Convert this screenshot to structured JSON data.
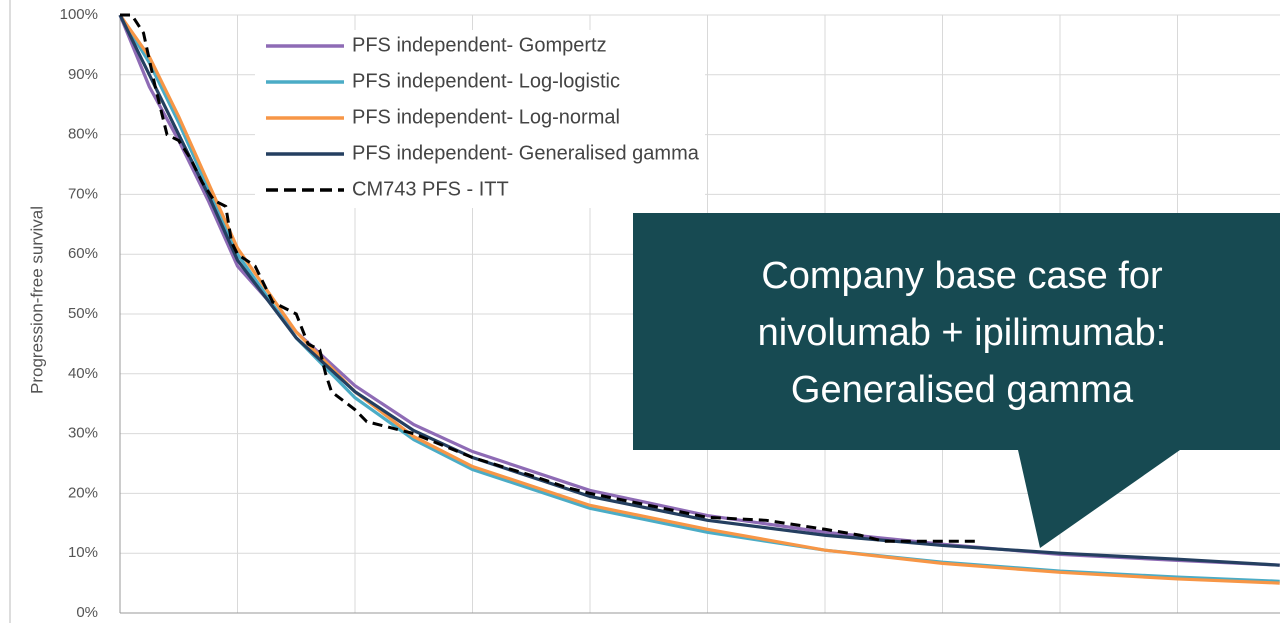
{
  "chart_data": {
    "type": "line",
    "y_label": "Progression-free survival",
    "ylim": [
      0,
      100
    ],
    "yticks": [
      {
        "value": 0,
        "label": "0%"
      },
      {
        "value": 10,
        "label": "10%"
      },
      {
        "value": 20,
        "label": "20%"
      },
      {
        "value": 30,
        "label": "30%"
      },
      {
        "value": 40,
        "label": "40%"
      },
      {
        "value": 50,
        "label": "50%"
      },
      {
        "value": 60,
        "label": "60%"
      },
      {
        "value": 70,
        "label": "70%"
      },
      {
        "value": 80,
        "label": "80%"
      },
      {
        "value": 90,
        "label": "90%"
      },
      {
        "value": 100,
        "label": "100%"
      }
    ],
    "xlim": [
      0,
      9.87
    ],
    "grid": true,
    "legend": "upper left",
    "series": [
      {
        "name": "PFS independent- Gompertz",
        "color": "#8e6bb5",
        "style": "solid",
        "x": [
          0,
          0.25,
          0.5,
          0.75,
          1,
          1.5,
          2,
          2.5,
          3,
          4,
          5,
          6,
          7,
          8,
          9,
          9.87
        ],
        "values": [
          100,
          88,
          79,
          69,
          58,
          47,
          38,
          31.5,
          27,
          20.5,
          16.3,
          13.5,
          11.5,
          9.8,
          8.8,
          8
        ]
      },
      {
        "name": "PFS independent- Log-logistic",
        "color": "#4bacc6",
        "style": "solid",
        "x": [
          0,
          0.25,
          0.5,
          0.75,
          1,
          1.5,
          2,
          2.5,
          3,
          4,
          5,
          6,
          7,
          8,
          9,
          9.87
        ],
        "values": [
          100,
          92,
          82,
          71,
          60,
          46,
          36,
          29,
          24,
          17.5,
          13.5,
          10.5,
          8.5,
          7,
          6,
          5.3
        ]
      },
      {
        "name": "PFS independent- Log-normal",
        "color": "#f79646",
        "style": "solid",
        "x": [
          0,
          0.25,
          0.5,
          0.75,
          1,
          1.5,
          2,
          2.5,
          3,
          4,
          5,
          6,
          7,
          8,
          9,
          9.87
        ],
        "values": [
          100,
          93,
          83,
          72,
          61,
          47,
          37,
          29.5,
          24.5,
          18,
          14,
          10.5,
          8.3,
          6.8,
          5.7,
          5
        ]
      },
      {
        "name": "PFS independent- Generalised gamma",
        "color": "#243f60",
        "style": "solid",
        "x": [
          0,
          0.25,
          0.5,
          0.75,
          1,
          1.5,
          2,
          2.5,
          3,
          4,
          5,
          6,
          7,
          8,
          9,
          9.87
        ],
        "values": [
          100,
          90,
          80,
          70,
          59,
          46,
          37,
          30.5,
          26,
          19.5,
          15.5,
          13,
          11.3,
          10,
          9,
          8
        ]
      },
      {
        "name": "CM743 PFS - ITT",
        "color": "#000000",
        "style": "dashed",
        "x": [
          0,
          0.1,
          0.2,
          0.3,
          0.4,
          0.5,
          0.6,
          0.7,
          0.8,
          0.9,
          0.95,
          1,
          1.15,
          1.3,
          1.5,
          1.6,
          1.7,
          1.75,
          1.8,
          2,
          2.1,
          2.5,
          3,
          3.5,
          3.8,
          4,
          4.5,
          5,
          5.5,
          6,
          6.3,
          6.5,
          7,
          7.3
        ],
        "values": [
          100,
          100,
          97,
          88,
          80,
          79,
          76,
          72,
          69,
          68,
          62,
          60,
          58,
          52,
          50,
          45,
          44,
          40,
          37,
          34,
          32,
          30,
          26,
          23,
          21,
          20,
          18,
          16,
          15.5,
          14,
          13,
          12,
          12,
          12
        ]
      }
    ],
    "annotation": [
      "Company base case for",
      "nivolumab + ipilimumab:",
      "Generalised gamma"
    ]
  }
}
